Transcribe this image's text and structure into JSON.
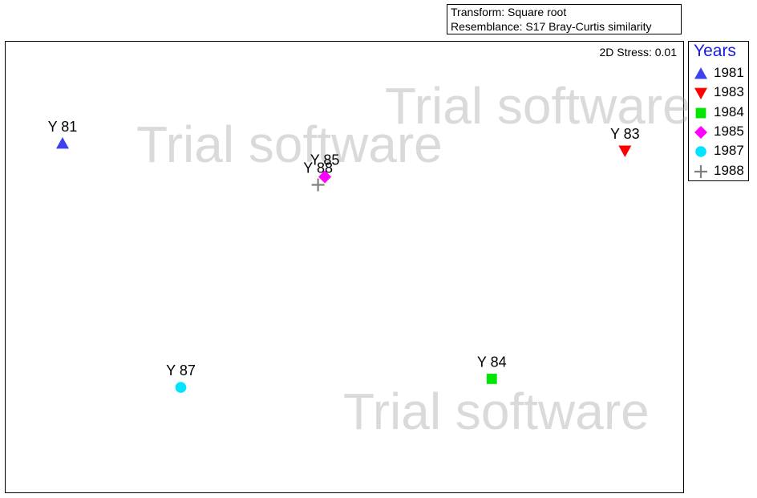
{
  "info": {
    "transform": "Transform: Square root",
    "resemblance": "Resemblance: S17 Bray-Curtis similarity"
  },
  "stress": "2D Stress: 0.01",
  "watermarks": [
    "Trial software",
    "Trial software",
    "Trial software"
  ],
  "legend": {
    "title": "Years",
    "items": [
      {
        "label": "1981",
        "marker": "triangle-up",
        "color": "#4040f0"
      },
      {
        "label": "1983",
        "marker": "triangle-down",
        "color": "#ff0000"
      },
      {
        "label": "1984",
        "marker": "square",
        "color": "#00e600"
      },
      {
        "label": "1985",
        "marker": "diamond",
        "color": "#ff00ff"
      },
      {
        "label": "1987",
        "marker": "circle",
        "color": "#00e5ff"
      },
      {
        "label": "1988",
        "marker": "plus",
        "color": "#808080"
      }
    ]
  },
  "chart_data": {
    "type": "scatter",
    "title": "",
    "xlabel": "",
    "ylabel": "",
    "grid": false,
    "legend_position": "right",
    "points": [
      {
        "label": "Y 81",
        "group": "1981",
        "x": 0.083,
        "y": 0.775
      },
      {
        "label": "Y 83",
        "group": "1983",
        "x": 0.915,
        "y": 0.759
      },
      {
        "label": "Y 84",
        "group": "1984",
        "x": 0.718,
        "y": 0.251
      },
      {
        "label": "Y 85",
        "group": "1985",
        "x": 0.471,
        "y": 0.701
      },
      {
        "label": "Y 87",
        "group": "1987",
        "x": 0.258,
        "y": 0.232
      },
      {
        "label": "Y 88",
        "group": "1988",
        "x": 0.461,
        "y": 0.683
      }
    ]
  }
}
